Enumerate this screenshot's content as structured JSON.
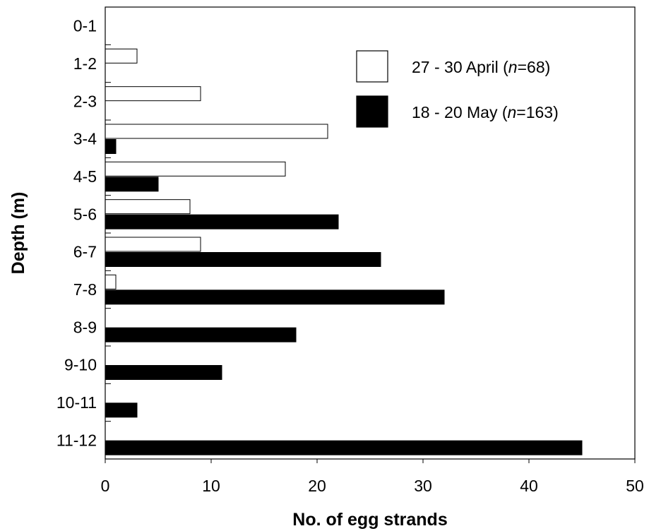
{
  "chart_data": {
    "type": "bar",
    "orientation": "horizontal",
    "categories": [
      "0-1",
      "1-2",
      "2-3",
      "3-4",
      "4-5",
      "5-6",
      "6-7",
      "7-8",
      "8-9",
      "9-10",
      "10-11",
      "11-12"
    ],
    "series": [
      {
        "name_prefix": "27 - 30 April (",
        "name_italic": "n",
        "name_suffix": "=68)",
        "color": "#ffffff",
        "values": [
          0,
          3,
          9,
          21,
          17,
          8,
          9,
          1,
          0,
          0,
          0,
          0
        ]
      },
      {
        "name_prefix": "18 - 20 May (",
        "name_italic": "n",
        "name_suffix": "=163)",
        "color": "#000000",
        "values": [
          0,
          0,
          0,
          1,
          5,
          22,
          26,
          32,
          18,
          11,
          3,
          45
        ]
      }
    ],
    "xlabel": "No. of egg strands",
    "ylabel": "Depth (m)",
    "xlim": [
      0,
      50
    ],
    "xticks": [
      0,
      10,
      20,
      30,
      40,
      50
    ],
    "grid": false,
    "legend_position": "top-right"
  }
}
